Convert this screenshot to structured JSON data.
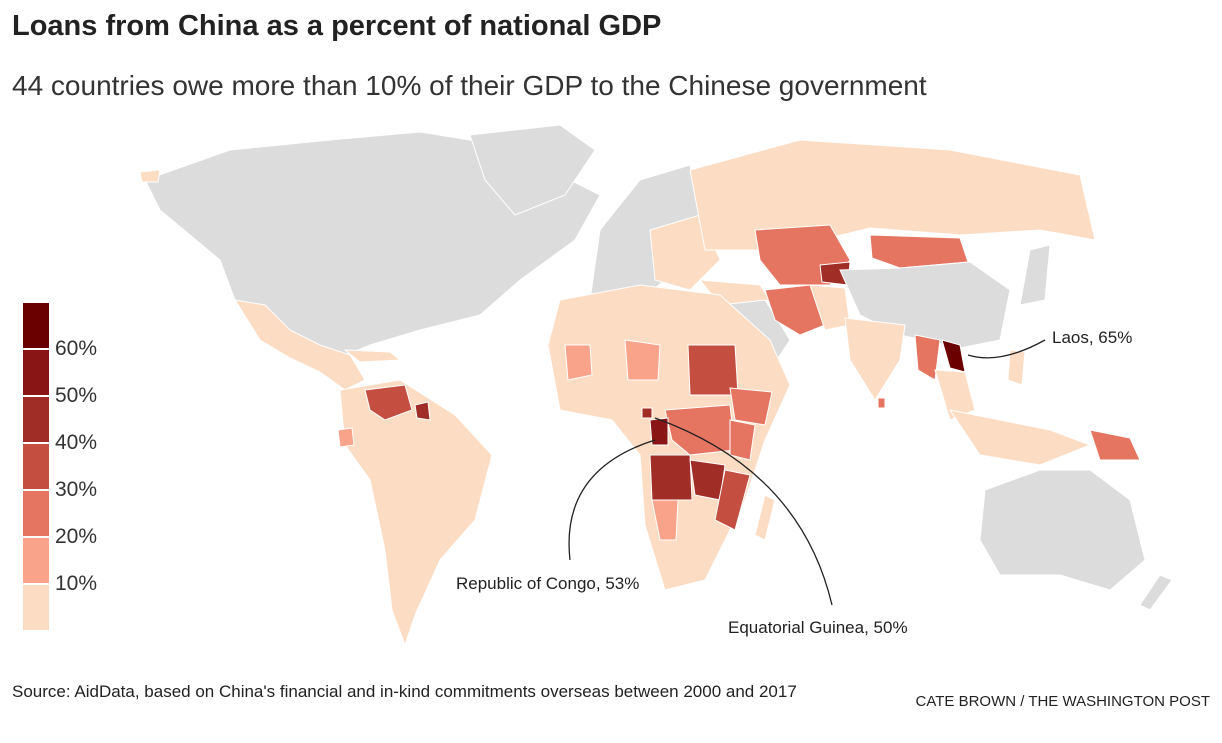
{
  "title": "Loans from China as a percent of national GDP",
  "subtitle": "44 countries owe more than 10% of their GDP to the Chinese government",
  "legend": {
    "colors": [
      "#6b0000",
      "#8a1515",
      "#a02d26",
      "#c44e40",
      "#e57560",
      "#f8a38a",
      "#fddcc4"
    ],
    "labels": [
      "60%",
      "50%",
      "40%",
      "30%",
      "20%",
      "10%"
    ],
    "no_data_color": "#dcdcdc"
  },
  "annotations": {
    "laos": "Laos, 65%",
    "congo": "Republic of Congo, 53%",
    "eq_guinea": "Equatorial Guinea, 50%"
  },
  "source": "Source: AidData, based on China's financial and in-kind commitments overseas between 2000 and 2017",
  "credit": "CATE BROWN / THE WASHINGTON POST"
}
